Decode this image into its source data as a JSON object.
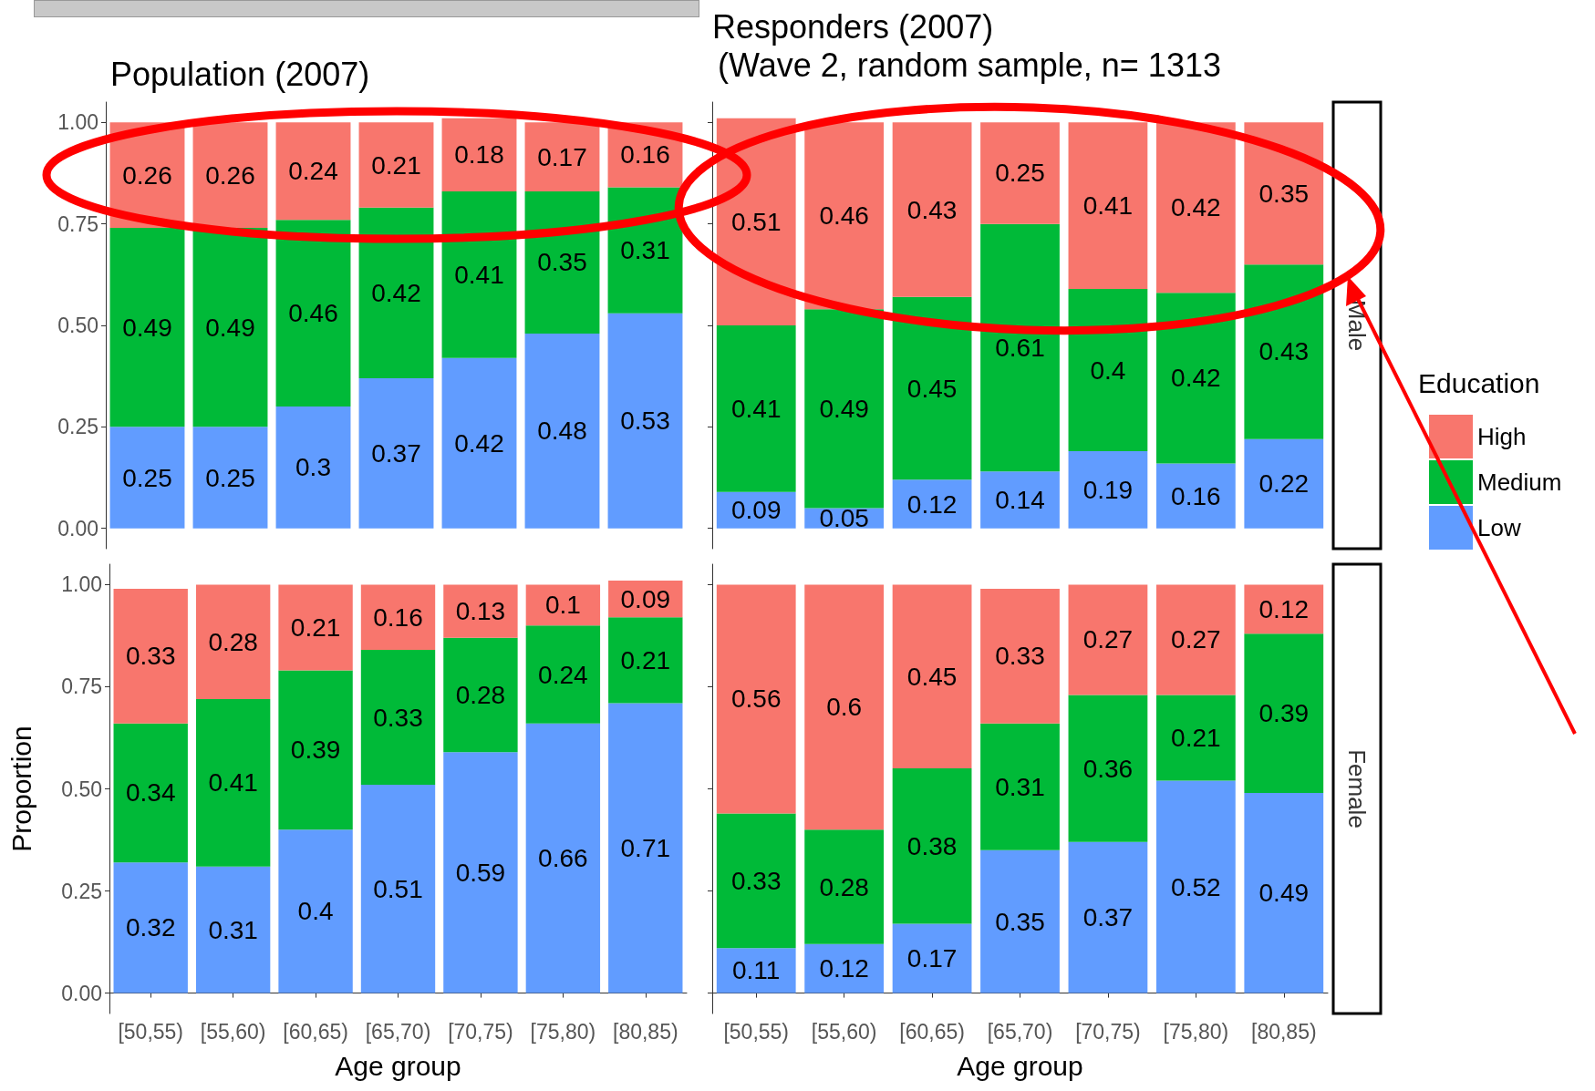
{
  "chart_data": [
    {
      "type": "bar",
      "stacked": true,
      "title": "Population (2007)",
      "categories": [
        null,
        null,
        null,
        null,
        null,
        null,
        null
      ],
      "ylim": [
        -0.05,
        1.05
      ],
      "yticks": [
        {
          "value": 0,
          "label": "0.00"
        },
        {
          "value": 0.25,
          "label": "0.25"
        },
        {
          "value": 0.5,
          "label": "0.50"
        },
        {
          "value": 0.75,
          "label": "0.75"
        },
        {
          "value": 1,
          "label": "1.00"
        }
      ],
      "tick_labels": "y",
      "data_labels": true,
      "grid": false,
      "legend": false,
      "series": [
        {
          "color": "#619cff",
          "values": [
            0.25,
            0.25,
            0.3,
            0.37,
            0.42,
            0.48,
            0.53
          ]
        },
        {
          "color": "#00ba38",
          "values": [
            0.49,
            0.49,
            0.46,
            0.42,
            0.41,
            0.35,
            0.31
          ]
        },
        {
          "color": "#f8766d",
          "values": [
            0.26,
            0.26,
            0.24,
            0.21,
            0.18,
            0.17,
            0.16
          ]
        }
      ]
    },
    {
      "type": "bar",
      "stacked": true,
      "title": "Responders (2007)",
      "subtitle": "(Wave 2, random sample, n= 1313",
      "annotations": [
        "Male"
      ],
      "categories": [
        null,
        null,
        null,
        null,
        null,
        null,
        null
      ],
      "tick_labels": false,
      "data_labels": true,
      "grid": false,
      "legend": "right",
      "legend_title": "Education",
      "series": [
        {
          "name": "Low",
          "color": "#619cff",
          "values": [
            0.09,
            0.05,
            0.12,
            0.14,
            0.19,
            0.16,
            0.22
          ]
        },
        {
          "name": "Medium",
          "color": "#00ba38",
          "values": [
            0.41,
            0.49,
            0.45,
            0.61,
            0.4,
            0.42,
            0.43
          ]
        },
        {
          "name": "High",
          "color": "#f8766d",
          "values": [
            0.51,
            0.46,
            0.43,
            0.25,
            0.41,
            0.42,
            0.35
          ]
        }
      ]
    },
    {
      "type": "bar",
      "stacked": true,
      "xlabel": "Age group",
      "ylabel": "Proportion",
      "categories": [
        "[50,55)",
        "[55,60)",
        "[60,65)",
        "[65,70)",
        "[70,75)",
        "[75,80)",
        "[80,85)"
      ],
      "ylim": [
        -0.05,
        1.05
      ],
      "yticks": [
        {
          "value": 0,
          "label": "0.00"
        },
        {
          "value": 0.25,
          "label": "0.25"
        },
        {
          "value": 0.5,
          "label": "0.50"
        },
        {
          "value": 0.75,
          "label": "0.75"
        },
        {
          "value": 1,
          "label": "1.00"
        }
      ],
      "data_labels": true,
      "grid": false,
      "legend": false,
      "series": [
        {
          "color": "#619cff",
          "values": [
            0.32,
            0.31,
            0.4,
            0.51,
            0.59,
            0.66,
            0.71
          ]
        },
        {
          "color": "#00ba38",
          "values": [
            0.34,
            0.41,
            0.39,
            0.33,
            0.28,
            0.24,
            0.21
          ]
        },
        {
          "color": "#f8766d",
          "values": [
            0.33,
            0.28,
            0.21,
            0.16,
            0.13,
            0.1,
            0.09
          ]
        }
      ]
    },
    {
      "type": "bar",
      "stacked": true,
      "xlabel": "Age group",
      "annotations": [
        "Female"
      ],
      "categories": [
        "[50,55)",
        "[55,60)",
        "[60,65)",
        "[65,70)",
        "[70,75)",
        "[75,80)",
        "[80,85)"
      ],
      "tick_labels": "x",
      "data_labels": true,
      "grid": false,
      "legend": false,
      "series": [
        {
          "color": "#619cff",
          "values": [
            0.11,
            0.12,
            0.17,
            0.35,
            0.37,
            0.52,
            0.49
          ]
        },
        {
          "color": "#00ba38",
          "values": [
            0.33,
            0.28,
            0.38,
            0.31,
            0.36,
            0.21,
            0.39
          ]
        },
        {
          "color": "#f8766d",
          "values": [
            0.56,
            0.6,
            0.45,
            0.33,
            0.27,
            0.27,
            0.12
          ]
        }
      ]
    }
  ]
}
